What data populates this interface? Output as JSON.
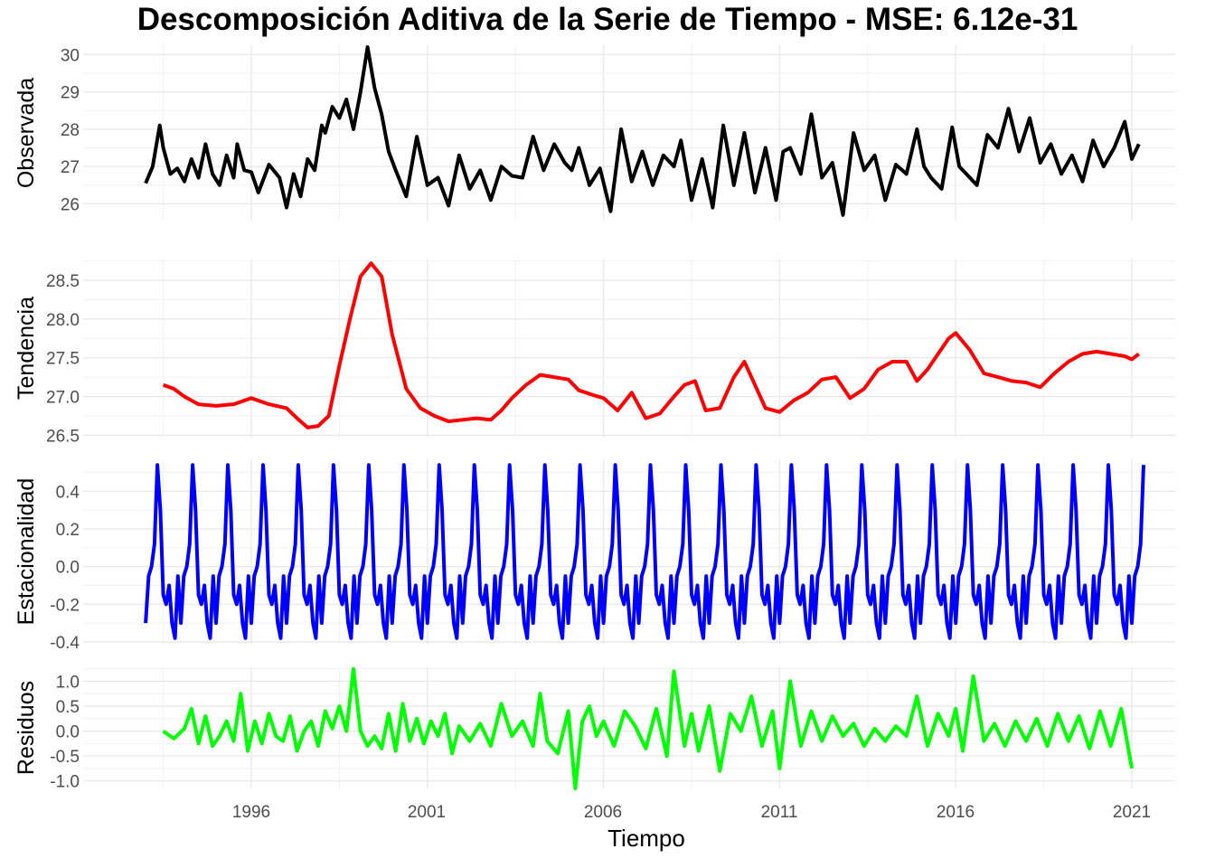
{
  "title": "Descomposición Aditiva de la Serie de Tiempo - MSE: 6.12e-31",
  "xlabel": "Tiempo",
  "x_ticks": [
    "1996",
    "2001",
    "2006",
    "2011",
    "2016",
    "2021"
  ],
  "chart_data": [
    {
      "type": "line",
      "name": "observada",
      "ylabel": "Observada",
      "color": "#000000",
      "xlim": [
        1992.3,
        2021.6
      ],
      "ylim": [
        25.55,
        30.25
      ],
      "y_ticks": [
        "26",
        "27",
        "28",
        "29",
        "30"
      ],
      "series": [
        {
          "x": [
            1993.0,
            1993.2,
            1993.4,
            1993.5,
            1993.7,
            1993.9,
            1994.1,
            1994.3,
            1994.5,
            1994.7,
            1994.9,
            1995.1,
            1995.3,
            1995.5,
            1995.6,
            1995.8,
            1996.0,
            1996.2,
            1996.5,
            1996.8,
            1997.0,
            1997.2,
            1997.4,
            1997.6,
            1997.8,
            1998.0,
            1998.1,
            1998.3,
            1998.5,
            1998.7,
            1998.9,
            1999.1,
            1999.3,
            1999.5,
            1999.7,
            1999.9,
            2000.1,
            2000.4,
            2000.7,
            2001.0,
            2001.3,
            2001.6,
            2001.9,
            2002.2,
            2002.5,
            2002.8,
            2003.1,
            2003.4,
            2003.7,
            2004.0,
            2004.3,
            2004.6,
            2004.9,
            2005.1,
            2005.3,
            2005.6,
            2005.9,
            2006.2,
            2006.5,
            2006.8,
            2007.1,
            2007.4,
            2007.7,
            2008.0,
            2008.2,
            2008.5,
            2008.8,
            2009.1,
            2009.4,
            2009.7,
            2010.0,
            2010.3,
            2010.6,
            2010.9,
            2011.1,
            2011.3,
            2011.6,
            2011.9,
            2012.2,
            2012.5,
            2012.8,
            2013.1,
            2013.4,
            2013.7,
            2014.0,
            2014.3,
            2014.6,
            2014.9,
            2015.1,
            2015.3,
            2015.6,
            2015.9,
            2016.1,
            2016.3,
            2016.6,
            2016.9,
            2017.2,
            2017.5,
            2017.8,
            2018.1,
            2018.4,
            2018.7,
            2019.0,
            2019.3,
            2019.6,
            2019.9,
            2020.2,
            2020.5,
            2020.8,
            2021.0,
            2021.2
          ],
          "y": [
            26.55,
            27.0,
            28.1,
            27.5,
            26.8,
            26.95,
            26.6,
            27.2,
            26.7,
            27.6,
            26.8,
            26.5,
            27.3,
            26.7,
            27.6,
            26.9,
            26.85,
            26.3,
            27.05,
            26.7,
            25.9,
            26.8,
            26.2,
            27.2,
            26.9,
            28.1,
            27.9,
            28.6,
            28.3,
            28.8,
            28.0,
            29.0,
            30.2,
            29.1,
            28.4,
            27.4,
            26.9,
            26.2,
            27.8,
            26.5,
            26.7,
            25.95,
            27.3,
            26.4,
            26.9,
            26.1,
            27.0,
            26.75,
            26.7,
            27.8,
            26.9,
            27.6,
            27.1,
            26.9,
            27.5,
            26.5,
            26.95,
            25.8,
            28.0,
            26.6,
            27.4,
            26.5,
            27.3,
            27.0,
            27.7,
            26.1,
            27.2,
            25.9,
            28.1,
            26.5,
            27.9,
            26.3,
            27.5,
            26.1,
            27.4,
            27.5,
            26.8,
            28.4,
            26.7,
            27.1,
            25.7,
            27.9,
            26.9,
            27.3,
            26.1,
            27.05,
            26.8,
            28.0,
            27.0,
            26.7,
            26.4,
            28.05,
            27.0,
            26.8,
            26.5,
            27.85,
            27.5,
            28.55,
            27.4,
            28.3,
            27.1,
            27.6,
            26.8,
            27.3,
            26.6,
            27.7,
            27.0,
            27.5,
            28.2,
            27.2,
            27.6
          ]
        }
      ]
    },
    {
      "type": "line",
      "name": "tendencia",
      "ylabel": "Tendencia",
      "color": "#ff0000",
      "xlim": [
        1992.3,
        2021.6
      ],
      "ylim": [
        26.47,
        28.78
      ],
      "y_ticks": [
        "26.5",
        "27.0",
        "27.5",
        "28.0",
        "28.5"
      ],
      "series": [
        {
          "x": [
            1993.5,
            1993.8,
            1994.1,
            1994.5,
            1995.0,
            1995.5,
            1996.0,
            1996.5,
            1997.0,
            1997.3,
            1997.6,
            1997.9,
            1998.2,
            1998.5,
            1998.8,
            1999.1,
            1999.4,
            1999.7,
            2000.0,
            2000.4,
            2000.8,
            2001.2,
            2001.6,
            2002.0,
            2002.4,
            2002.8,
            2003.1,
            2003.4,
            2003.8,
            2004.2,
            2004.6,
            2005.0,
            2005.3,
            2005.7,
            2006.0,
            2006.4,
            2006.8,
            2007.2,
            2007.6,
            2008.0,
            2008.3,
            2008.6,
            2008.9,
            2009.3,
            2009.7,
            2010.0,
            2010.2,
            2010.6,
            2011.0,
            2011.4,
            2011.8,
            2012.2,
            2012.6,
            2013.0,
            2013.4,
            2013.8,
            2014.2,
            2014.6,
            2014.9,
            2015.2,
            2015.5,
            2015.8,
            2016.0,
            2016.4,
            2016.8,
            2017.2,
            2017.6,
            2018.0,
            2018.4,
            2018.8,
            2019.2,
            2019.6,
            2020.0,
            2020.4,
            2020.8,
            2021.0,
            2021.2
          ],
          "y": [
            27.15,
            27.1,
            27.0,
            26.9,
            26.88,
            26.9,
            26.98,
            26.9,
            26.85,
            26.72,
            26.6,
            26.62,
            26.75,
            27.4,
            28.0,
            28.55,
            28.72,
            28.55,
            27.8,
            27.1,
            26.85,
            26.75,
            26.68,
            26.7,
            26.72,
            26.7,
            26.82,
            26.98,
            27.15,
            27.28,
            27.25,
            27.22,
            27.08,
            27.02,
            26.98,
            26.82,
            27.05,
            26.72,
            26.78,
            27.0,
            27.15,
            27.2,
            26.82,
            26.85,
            27.25,
            27.45,
            27.25,
            26.85,
            26.8,
            26.95,
            27.05,
            27.22,
            27.25,
            26.98,
            27.1,
            27.35,
            27.45,
            27.45,
            27.2,
            27.35,
            27.55,
            27.75,
            27.82,
            27.6,
            27.3,
            27.25,
            27.2,
            27.18,
            27.12,
            27.3,
            27.45,
            27.55,
            27.58,
            27.55,
            27.52,
            27.48,
            27.55
          ]
        }
      ]
    },
    {
      "type": "line",
      "name": "estacionalidad",
      "ylabel": "Estacionalidad",
      "color": "#0000ff",
      "xlim": [
        1992.3,
        2021.6
      ],
      "ylim": [
        -0.41,
        0.57
      ],
      "y_ticks": [
        "-0.4",
        "-0.2",
        "0.0",
        "0.2",
        "0.4"
      ],
      "series": [
        {
          "name": "",
          "start": 1993.0,
          "end": 2021.3,
          "pattern": [
            -0.3,
            -0.05,
            0.0,
            0.12,
            0.54,
            0.3,
            -0.15,
            -0.2,
            -0.1,
            -0.3,
            -0.38,
            -0.05
          ]
        }
      ]
    },
    {
      "type": "line",
      "name": "residuos",
      "ylabel": "Residuos",
      "color": "#00ff00",
      "xlim": [
        1992.3,
        2021.6
      ],
      "ylim": [
        -1.15,
        1.28
      ],
      "y_ticks": [
        "-1.0",
        "-0.5",
        "0.0",
        "0.5",
        "1.0"
      ],
      "series": [
        {
          "x": [
            1993.5,
            1993.8,
            1994.1,
            1994.3,
            1994.5,
            1994.7,
            1994.9,
            1995.1,
            1995.3,
            1995.5,
            1995.7,
            1995.9,
            1996.1,
            1996.3,
            1996.5,
            1996.7,
            1996.9,
            1997.1,
            1997.3,
            1997.5,
            1997.7,
            1997.9,
            1998.1,
            1998.3,
            1998.5,
            1998.7,
            1998.9,
            1999.1,
            1999.3,
            1999.5,
            1999.7,
            1999.9,
            2000.1,
            2000.3,
            2000.5,
            2000.7,
            2000.9,
            2001.1,
            2001.3,
            2001.5,
            2001.7,
            2001.9,
            2002.2,
            2002.5,
            2002.8,
            2003.1,
            2003.4,
            2003.7,
            2004.0,
            2004.2,
            2004.4,
            2004.7,
            2005.0,
            2005.2,
            2005.4,
            2005.6,
            2005.8,
            2006.0,
            2006.3,
            2006.6,
            2006.9,
            2007.2,
            2007.5,
            2007.8,
            2008.0,
            2008.3,
            2008.5,
            2008.7,
            2009.0,
            2009.3,
            2009.6,
            2009.9,
            2010.2,
            2010.5,
            2010.8,
            2011.0,
            2011.3,
            2011.6,
            2011.9,
            2012.2,
            2012.5,
            2012.8,
            2013.1,
            2013.4,
            2013.7,
            2014.0,
            2014.3,
            2014.6,
            2014.9,
            2015.2,
            2015.5,
            2015.8,
            2016.0,
            2016.2,
            2016.5,
            2016.8,
            2017.1,
            2017.4,
            2017.7,
            2018.0,
            2018.3,
            2018.6,
            2018.9,
            2019.2,
            2019.5,
            2019.8,
            2020.1,
            2020.4,
            2020.7,
            2021.0
          ],
          "y": [
            0.0,
            -0.15,
            0.05,
            0.45,
            -0.25,
            0.3,
            -0.3,
            -0.1,
            0.2,
            -0.2,
            0.75,
            -0.4,
            0.2,
            -0.25,
            0.35,
            -0.1,
            -0.2,
            0.3,
            -0.4,
            0.0,
            0.2,
            -0.3,
            0.4,
            0.05,
            0.5,
            0.0,
            1.25,
            0.0,
            -0.3,
            -0.1,
            -0.35,
            0.35,
            -0.4,
            0.55,
            -0.2,
            0.25,
            -0.25,
            0.2,
            -0.1,
            0.35,
            -0.45,
            0.1,
            -0.2,
            0.15,
            -0.3,
            0.55,
            -0.1,
            0.2,
            -0.3,
            0.75,
            -0.2,
            -0.45,
            0.4,
            -1.15,
            0.2,
            0.5,
            -0.1,
            0.2,
            -0.3,
            0.4,
            0.1,
            -0.35,
            0.45,
            -0.5,
            1.2,
            -0.3,
            0.35,
            -0.4,
            0.5,
            -0.8,
            0.35,
            0.0,
            0.7,
            -0.3,
            0.4,
            -0.75,
            1.0,
            -0.3,
            0.4,
            -0.2,
            0.3,
            -0.1,
            0.15,
            -0.3,
            0.05,
            -0.2,
            0.1,
            -0.1,
            0.7,
            -0.3,
            0.35,
            -0.1,
            0.45,
            -0.4,
            1.1,
            -0.2,
            0.15,
            -0.3,
            0.2,
            -0.2,
            0.25,
            -0.3,
            0.35,
            -0.2,
            0.3,
            -0.35,
            0.4,
            -0.3,
            0.45,
            -0.75
          ]
        }
      ]
    }
  ]
}
